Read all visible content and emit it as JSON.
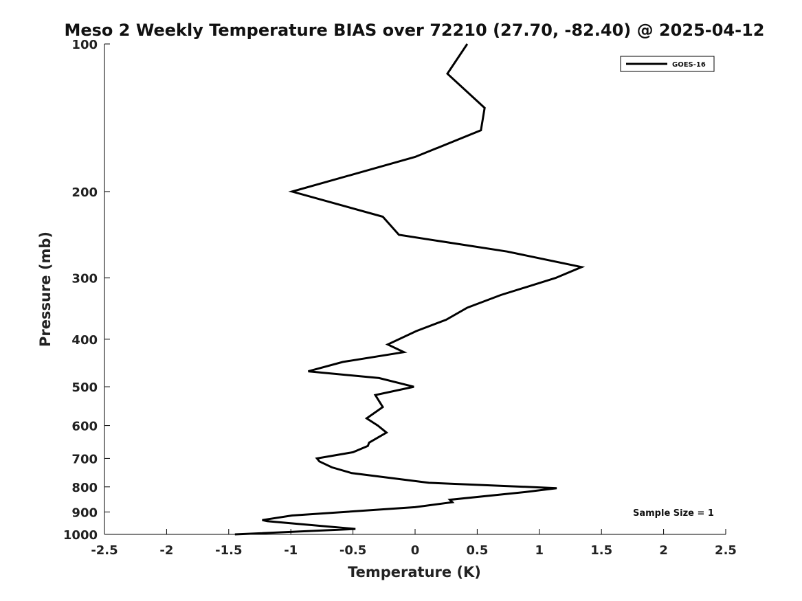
{
  "chart_data": {
    "type": "line",
    "title": "Meso 2 Weekly Temperature BIAS over 72210 (27.70, -82.40) @ 2025-04-12",
    "xlabel": "Temperature (K)",
    "ylabel": "Pressure (mb)",
    "xlim": [
      -2.5,
      2.5
    ],
    "ylim": [
      1000,
      100
    ],
    "yscale": "log",
    "y_reversed": true,
    "xticks": [
      -2.5,
      -2,
      -1.5,
      -1,
      -0.5,
      0,
      0.5,
      1,
      1.5,
      2,
      2.5
    ],
    "xtick_labels": [
      "-2.5",
      "-2",
      "-1.5",
      "-1",
      "-0.5",
      "0",
      "0.5",
      "1",
      "1.5",
      "2",
      "2.5"
    ],
    "yticks": [
      100,
      200,
      300,
      400,
      500,
      600,
      700,
      800,
      900,
      1000
    ],
    "ytick_labels": [
      "100",
      "200",
      "300",
      "400",
      "500",
      "600",
      "700",
      "800",
      "900",
      "1000"
    ],
    "grid": false,
    "legend": {
      "position": "top-right",
      "entries": [
        "GOES-16"
      ]
    },
    "annotation": "Sample Size = 1",
    "series": [
      {
        "name": "GOES-16",
        "color": "#000000",
        "x": [
          0.42,
          0.26,
          0.56,
          0.53,
          0.0,
          -0.99,
          -0.26,
          -0.13,
          0.74,
          1.34,
          1.13,
          0.69,
          0.42,
          0.25,
          0.01,
          -0.22,
          -0.09,
          -0.58,
          -0.86,
          -0.29,
          -0.01,
          -0.32,
          -0.26,
          -0.39,
          -0.3,
          -0.23,
          -0.37,
          -0.38,
          -0.5,
          -0.79,
          -0.77,
          -0.67,
          -0.51,
          0.11,
          1.14,
          0.88,
          0.28,
          0.3,
          0.0,
          -0.99,
          -1.23,
          -1.19,
          -0.48,
          -1.45
        ],
        "y": [
          100,
          115,
          135,
          150,
          170,
          200,
          225,
          245,
          265,
          285,
          300,
          325,
          345,
          365,
          385,
          410,
          425,
          445,
          465,
          480,
          500,
          520,
          550,
          580,
          600,
          620,
          650,
          660,
          680,
          700,
          710,
          730,
          750,
          785,
          805,
          820,
          850,
          860,
          880,
          915,
          935,
          940,
          975,
          1000
        ]
      }
    ]
  }
}
